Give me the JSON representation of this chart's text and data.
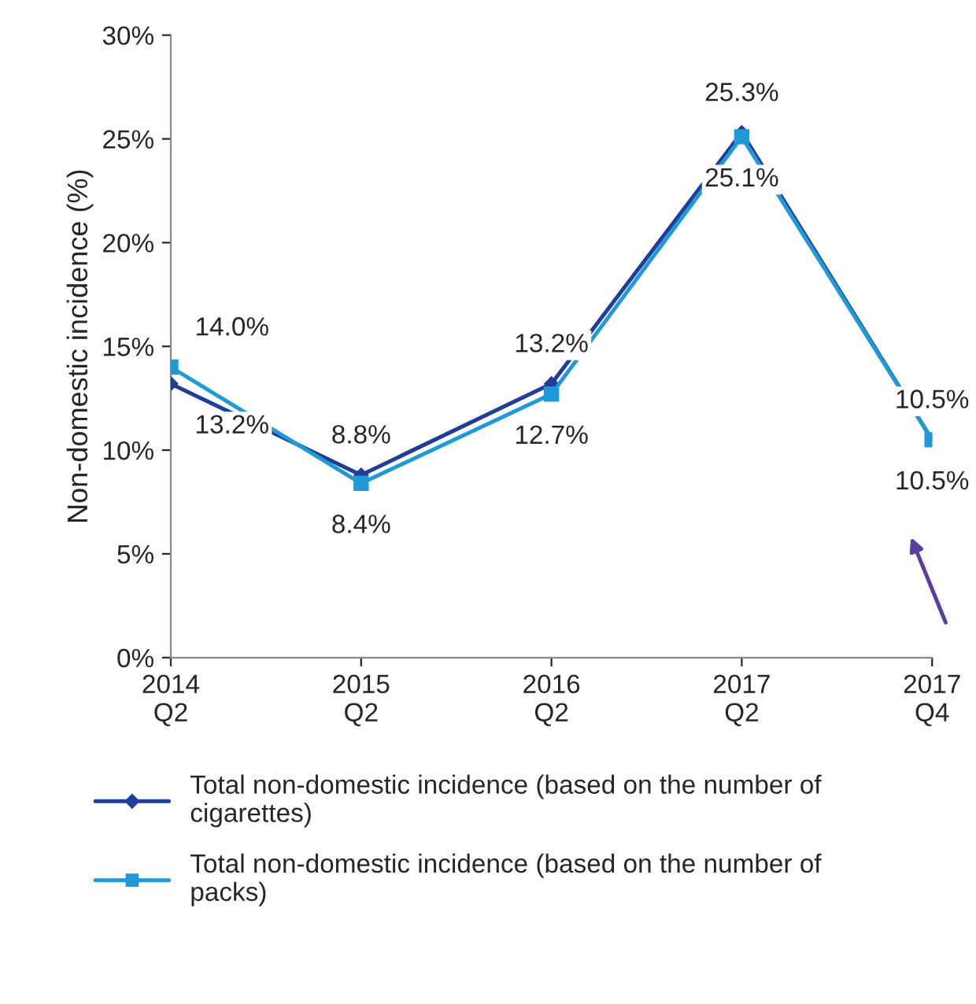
{
  "chart_data": {
    "type": "line",
    "ylabel": "Non-domestic incidence (%)",
    "categories": [
      "2014\nQ2",
      "2015\nQ2",
      "2016\nQ2",
      "2017\nQ2",
      "2017\nQ4"
    ],
    "series": [
      {
        "name": "Total non-domestic incidence (based on the number of cigarettes)",
        "color": "#1f3d99",
        "marker": "diamond",
        "values": [
          13.2,
          8.8,
          13.2,
          25.3,
          10.5
        ],
        "value_labels": [
          "13.2%",
          "8.8%",
          "13.2%",
          "25.3%",
          "10.5%"
        ]
      },
      {
        "name": "Total non-domestic incidence (based on the number of packs)",
        "color": "#1f9ad6",
        "marker": "square",
        "values": [
          14.0,
          8.4,
          12.7,
          25.1,
          10.5
        ],
        "value_labels": [
          "14.0%",
          "8.4%",
          "12.7%",
          "25.1%",
          "10.5%"
        ]
      }
    ],
    "ylim": [
      0,
      30
    ],
    "yticks": [
      {
        "value": 0,
        "label": "0%"
      },
      {
        "value": 5,
        "label": "5%"
      },
      {
        "value": 10,
        "label": "10%"
      },
      {
        "value": 15,
        "label": "15%"
      },
      {
        "value": 20,
        "label": "20%"
      },
      {
        "value": 25,
        "label": "25%"
      },
      {
        "value": 30,
        "label": "30%"
      }
    ],
    "grid": false,
    "legend": "bottom",
    "line_style": "solid"
  }
}
